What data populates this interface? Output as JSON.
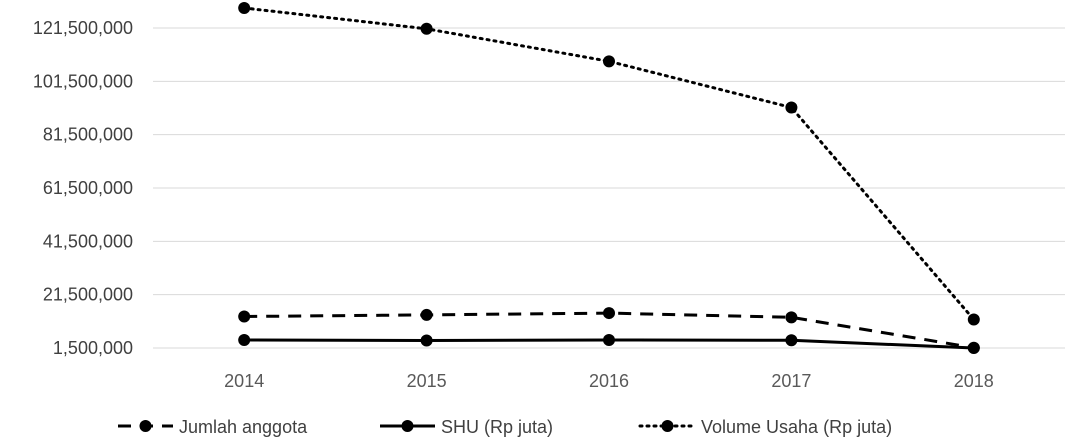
{
  "chart_data": {
    "type": "line",
    "categories": [
      "2014",
      "2015",
      "2016",
      "2017",
      "2018"
    ],
    "ylim": [
      1500000,
      129000000
    ],
    "yticks": [
      1500000,
      21500000,
      41500000,
      61500000,
      81500000,
      101500000,
      121500000
    ],
    "ytick_labels": [
      "1,500,000",
      "21,500,000",
      "41,500,000",
      "61,500,000",
      "81,500,000",
      "101,500,000",
      "121,500,000"
    ],
    "grid": true,
    "legend_position": "bottom",
    "series": [
      {
        "name": "Jumlah anggota",
        "style": "dashed",
        "color": "#000000",
        "values": [
          13300000,
          13900000,
          14600000,
          13000000,
          1600000
        ]
      },
      {
        "name": "SHU (Rp juta)",
        "style": "solid",
        "color": "#000000",
        "values": [
          4500000,
          4300000,
          4500000,
          4400000,
          1500000
        ]
      },
      {
        "name": "Volume Usaha (Rp juta)",
        "style": "dotted",
        "color": "#000000",
        "values": [
          129000000,
          121200000,
          109000000,
          91700000,
          12200000
        ]
      }
    ]
  }
}
